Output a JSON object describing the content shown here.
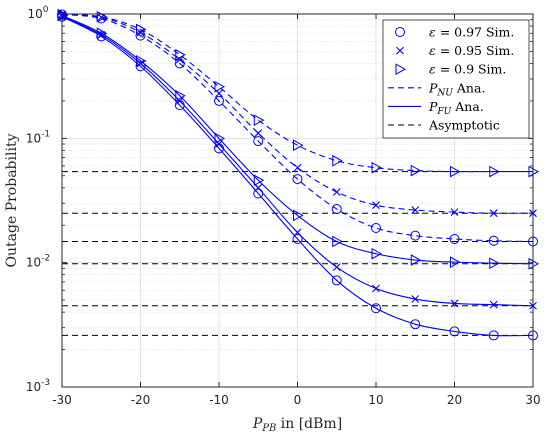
{
  "chart_data": {
    "type": "line",
    "xlabel_main": "P",
    "xlabel_sub": "PB",
    "xlabel_rest": " in [dBm]",
    "ylabel": "Outage Probability",
    "xlim": [
      -30,
      30
    ],
    "ylim": [
      0.001,
      1
    ],
    "y_scale": "log",
    "grid": true,
    "legend_position": "top-right",
    "x_ticks": [
      -30,
      -20,
      -10,
      0,
      10,
      20,
      30
    ],
    "x_tick_labels": [
      "-30",
      "-20",
      "-10",
      "0",
      "10",
      "20",
      "30"
    ],
    "y_ticks": [
      0.001,
      0.01,
      0.1,
      1
    ],
    "y_tick_base": "10",
    "y_tick_exps": [
      "-3",
      "-2",
      "-1",
      "0"
    ],
    "colors": {
      "series": "#0000ff",
      "asymptote": "#000000",
      "grid": "#dcdcdc",
      "axis": "#262626"
    },
    "x": [
      -30,
      -25,
      -20,
      -15,
      -10,
      -5,
      0,
      5,
      10,
      15,
      20,
      25,
      30
    ],
    "series": [
      {
        "group": "eps097",
        "kind": "NU",
        "marker": "circle",
        "values": [
          0.99,
          0.92,
          0.67,
          0.4,
          0.2,
          0.095,
          0.047,
          0.027,
          0.019,
          0.0165,
          0.0155,
          0.015,
          0.0148
        ]
      },
      {
        "group": "eps097",
        "kind": "FU",
        "marker": "circle",
        "values": [
          0.95,
          0.66,
          0.38,
          0.185,
          0.083,
          0.036,
          0.0155,
          0.0072,
          0.0043,
          0.0032,
          0.0028,
          0.0026,
          0.0026
        ]
      },
      {
        "group": "eps095",
        "kind": "NU",
        "marker": "cross",
        "values": [
          0.99,
          0.94,
          0.71,
          0.43,
          0.23,
          0.11,
          0.058,
          0.037,
          0.029,
          0.0265,
          0.0255,
          0.025,
          0.025
        ]
      },
      {
        "group": "eps095",
        "kind": "FU",
        "marker": "cross",
        "values": [
          0.96,
          0.68,
          0.4,
          0.2,
          0.09,
          0.04,
          0.0175,
          0.0092,
          0.0062,
          0.0051,
          0.0047,
          0.0046,
          0.0045
        ]
      },
      {
        "group": "eps09",
        "kind": "NU",
        "marker": "triangle",
        "values": [
          0.99,
          0.95,
          0.75,
          0.47,
          0.26,
          0.14,
          0.088,
          0.066,
          0.058,
          0.055,
          0.054,
          0.054,
          0.054
        ]
      },
      {
        "group": "eps09",
        "kind": "FU",
        "marker": "triangle",
        "values": [
          0.97,
          0.7,
          0.42,
          0.22,
          0.1,
          0.046,
          0.024,
          0.0148,
          0.0118,
          0.0105,
          0.0101,
          0.0099,
          0.0098
        ]
      }
    ],
    "asymptotes": [
      0.054,
      0.025,
      0.0148,
      0.0098,
      0.0045,
      0.0026
    ],
    "asymptote_x_start": -30,
    "legend": [
      {
        "type": "marker",
        "marker": "circle",
        "symbol": "ε",
        "rest": " = 0.97 Sim."
      },
      {
        "type": "marker",
        "marker": "cross",
        "symbol": "ε",
        "rest": " = 0.95 Sim."
      },
      {
        "type": "marker",
        "marker": "triangle",
        "symbol": "ε",
        "rest": " = 0.9 Sim."
      },
      {
        "type": "line",
        "dash": "dashed",
        "color": "#0000ff",
        "main": "P",
        "sub": "NU",
        "rest": " Ana."
      },
      {
        "type": "line",
        "dash": "solid",
        "color": "#0000ff",
        "main": "P",
        "sub": "FU",
        "rest": " Ana."
      },
      {
        "type": "line",
        "dash": "dashed",
        "color": "#000000",
        "main": "",
        "sub": "",
        "rest": "Asymptotic"
      }
    ]
  }
}
